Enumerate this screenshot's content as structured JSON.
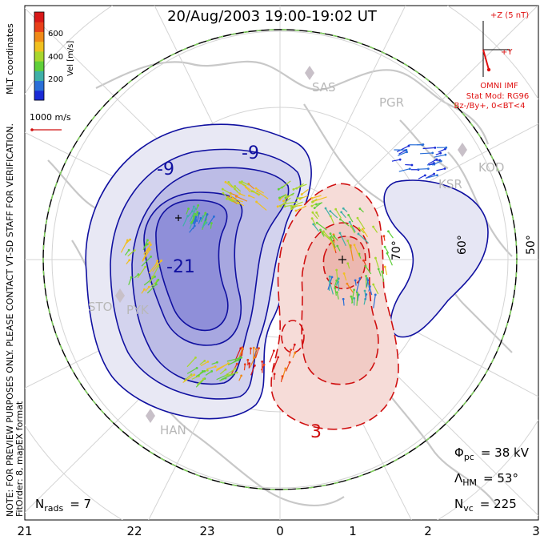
{
  "title": "20/Aug/2003 19:00-19:02 UT",
  "colorbar": {
    "side_label": "MLT coordinates",
    "axis_label": "Vel [m/s]",
    "ticks": [
      "600",
      "400",
      "200"
    ],
    "colors": [
      "#1a2bd6",
      "#2a6fd8",
      "#3fb0a8",
      "#5fcf3a",
      "#a8d62e",
      "#f0c020",
      "#f08a18",
      "#e8401a",
      "#d81818"
    ]
  },
  "scale_vector_label": "1000 m/s",
  "imf": {
    "z_label": "+Z (5 nT)",
    "y_label": "+Y",
    "source": "OMNI IMF",
    "stat_mod": "Stat Mod: RG96",
    "condition": "Bz-/By+, 0<BT<4"
  },
  "stations": [
    "SAS",
    "PGR",
    "KOD",
    "KSR",
    "STO",
    "PYK",
    "HAN"
  ],
  "contour_labels": [
    "-9",
    "-9",
    "-21",
    "3"
  ],
  "lat_labels": [
    "70°",
    "60°",
    "50°"
  ],
  "mlt_labels": [
    "21",
    "22",
    "23",
    "0",
    "1",
    "2",
    "3"
  ],
  "side_note": "NOTE: FOR PREVIEW PURPOSES ONLY. PLEASE CONTACT VT-SD STAFF FOR VERIFICATION.",
  "fit_order": "FitOrder: 8, mapEX format",
  "nrads": {
    "label": "N",
    "sub": "rads",
    "value": "= 7"
  },
  "stats": [
    {
      "sym": "Φ",
      "sub": "pc",
      "value": "= 38 kV"
    },
    {
      "sym": "Λ",
      "sub": "HM",
      "value": "= 53°"
    },
    {
      "sym": "N",
      "sub": "vc",
      "value": "= 225"
    }
  ],
  "colors": {
    "negative": "#1010a0",
    "positive": "#d01010",
    "imf": "#e01010",
    "boundary_dash": "#7fd35a"
  }
}
